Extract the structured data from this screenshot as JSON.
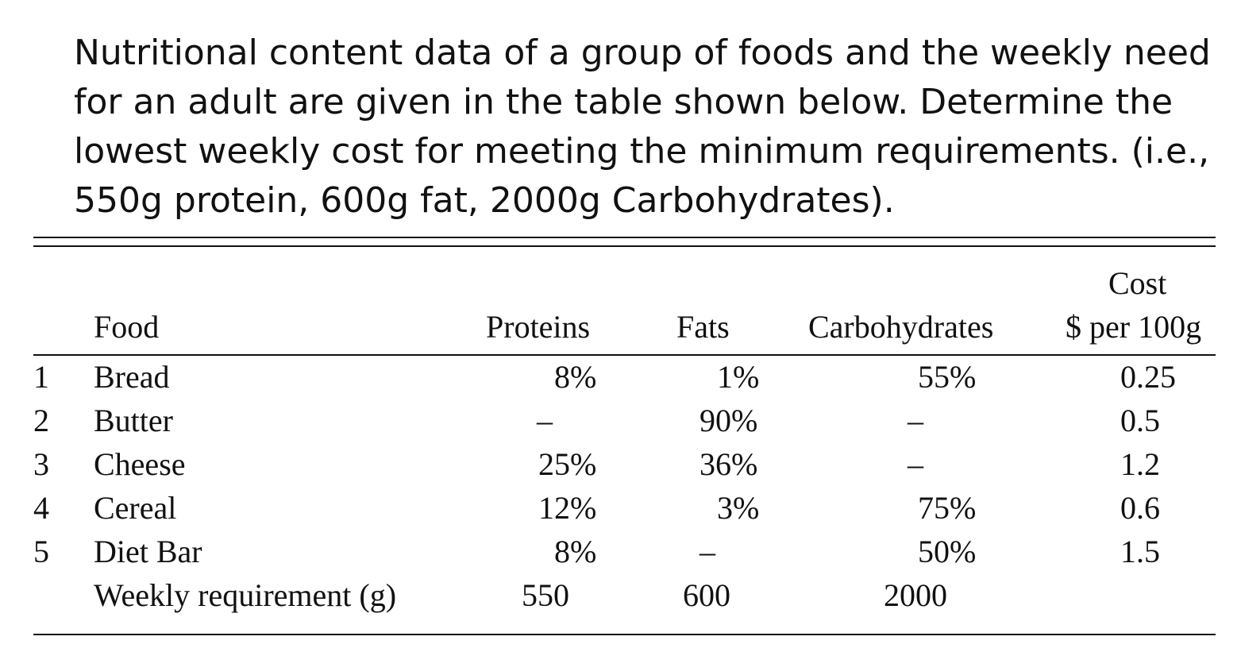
{
  "problem": {
    "lines": [
      "Nutritional content data of a group of foods and the weekly need",
      "for an adult are given in the table shown below. Determine the",
      "lowest weekly cost for meeting the minimum requirements. (i.e.,",
      "550g protein, 600g fat, 2000g Carbohydrates)."
    ]
  },
  "table": {
    "headers": {
      "food": "Food",
      "proteins": "Proteins",
      "fats": "Fats",
      "carbohydrates": "Carbohydrates",
      "cost_line1": "Cost",
      "cost_line2": "$ per 100g"
    },
    "rows": [
      {
        "index": "1",
        "food": "Bread",
        "proteins": "8%",
        "fats": "1%",
        "carbohydrates": "55%",
        "cost": "0.25"
      },
      {
        "index": "2",
        "food": "Butter",
        "proteins": "–",
        "fats": "90%",
        "carbohydrates": "–",
        "cost": "0.5"
      },
      {
        "index": "3",
        "food": "Cheese",
        "proteins": "25%",
        "fats": "36%",
        "carbohydrates": "–",
        "cost": "1.2"
      },
      {
        "index": "4",
        "food": "Cereal",
        "proteins": "12%",
        "fats": "3%",
        "carbohydrates": "75%",
        "cost": "0.6"
      },
      {
        "index": "5",
        "food": "Diet Bar",
        "proteins": "8%",
        "fats": "–",
        "carbohydrates": "50%",
        "cost": "1.5"
      }
    ],
    "requirement": {
      "label": "Weekly requirement (g)",
      "proteins": "550",
      "fats": "600",
      "carbohydrates": "2000"
    }
  }
}
